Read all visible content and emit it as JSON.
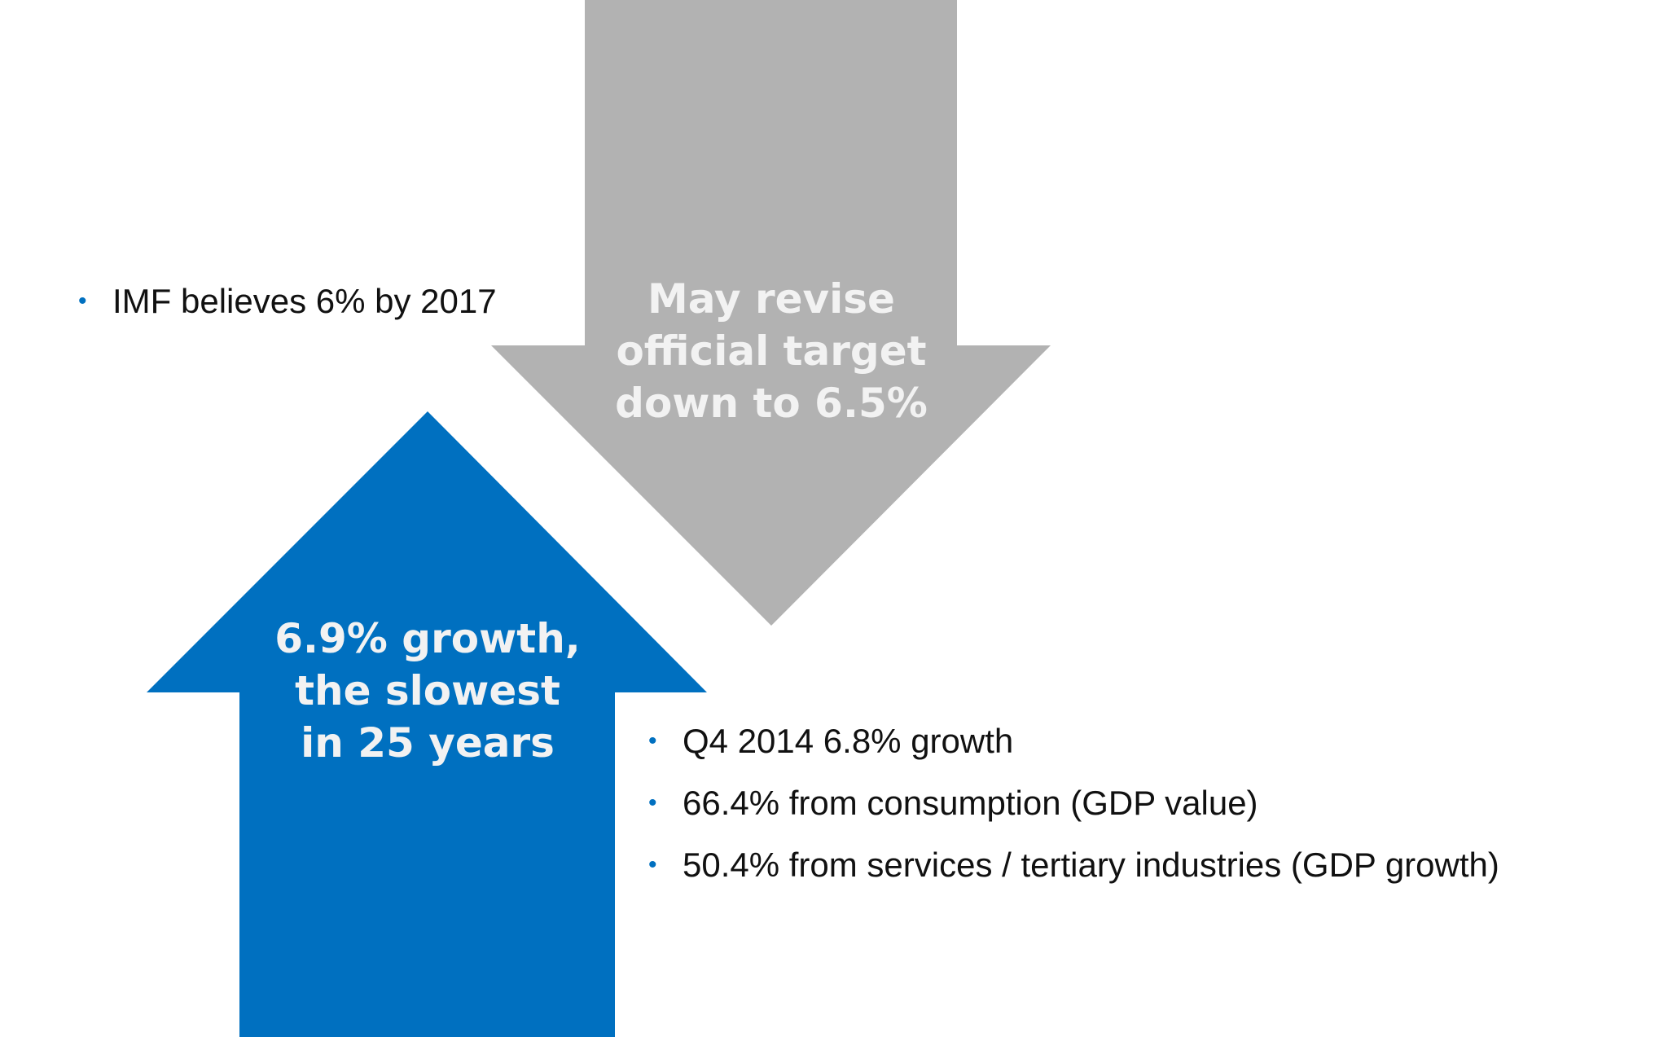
{
  "colors": {
    "blue_arrow": "#0070C0",
    "gray_arrow": "#B2B2B2",
    "arrow_text": "#F2F2F2",
    "bullet": "#0070C0"
  },
  "down_arrow": {
    "lines": [
      "May revise",
      "official target",
      "down to 6.5%"
    ]
  },
  "up_arrow": {
    "lines": [
      "6.9% growth,",
      "the slowest",
      "in 25 years"
    ]
  },
  "left_bullets": [
    "IMF believes 6% by 2017"
  ],
  "right_bullets": [
    "Q4 2014 6.8% growth",
    "66.4% from consumption (GDP value)",
    "50.4% from services / tertiary industries (GDP growth)"
  ]
}
